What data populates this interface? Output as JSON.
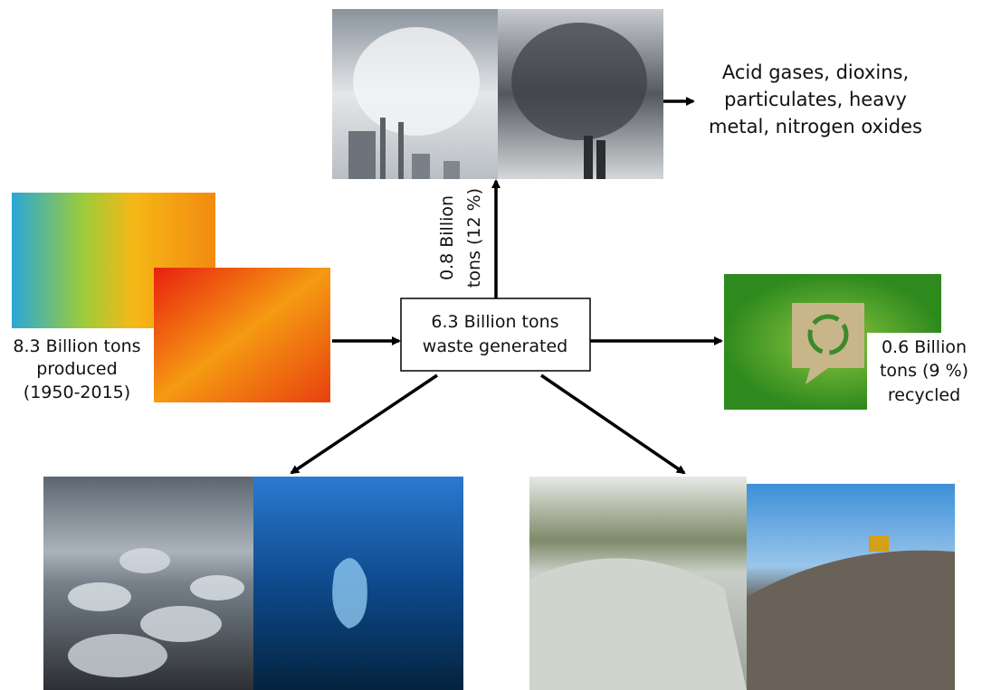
{
  "emissions": {
    "lines": [
      "Acid gases, dioxins,",
      "particulates, heavy",
      "metal, nitrogen oxides"
    ]
  },
  "incinerated": {
    "lines": [
      "0.8 Billion",
      "tons (12 %)"
    ]
  },
  "produced": {
    "lines": [
      "8.3 Billion tons",
      "produced",
      "(1950-2015)"
    ]
  },
  "waste": {
    "lines": [
      "6.3 Billion tons",
      "waste generated"
    ]
  },
  "recycled": {
    "lines": [
      "0.6 Billion",
      "tons (9 %)",
      "recycled"
    ]
  }
}
